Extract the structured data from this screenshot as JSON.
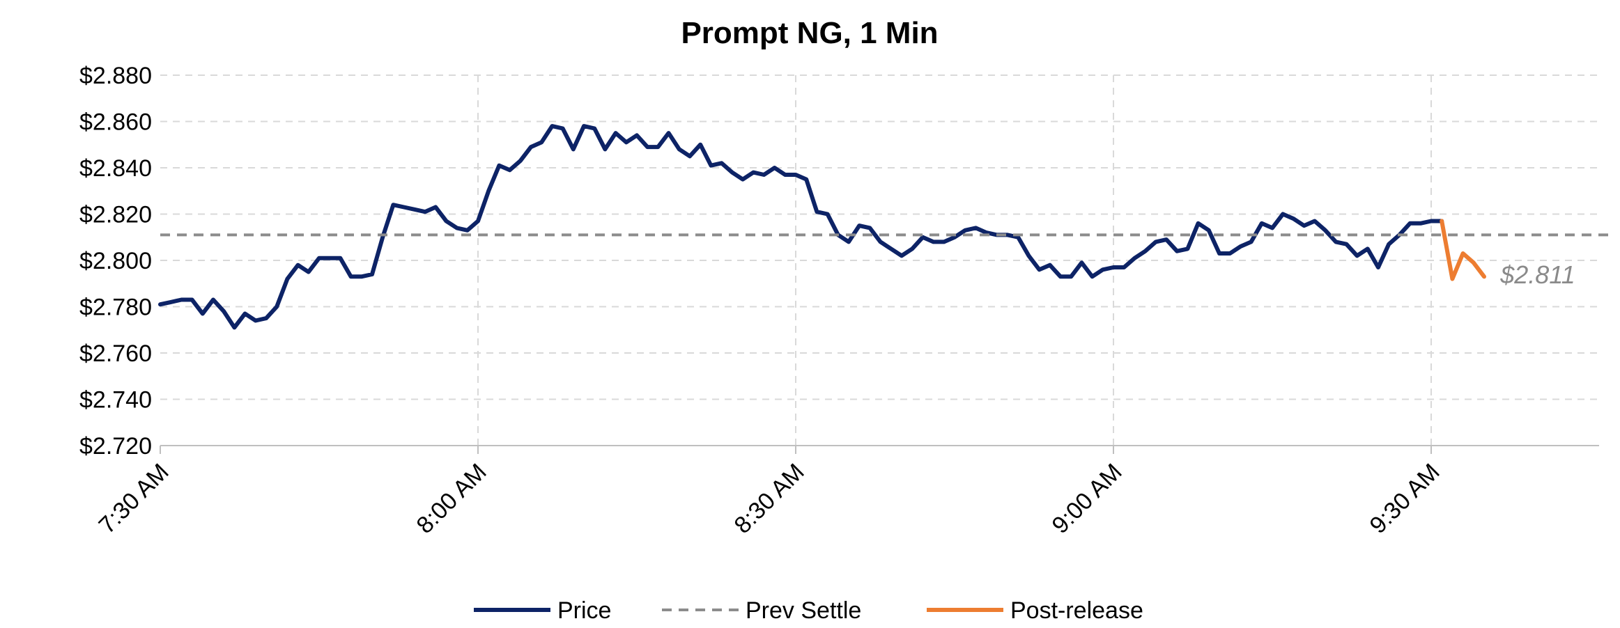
{
  "chart_data": {
    "type": "line",
    "title": "Prompt NG, 1 Min",
    "xlabel": "",
    "ylabel": "",
    "x_unit_minutes_from": "7:30 AM",
    "xlim": [
      0,
      125
    ],
    "ylim": [
      2.72,
      2.88
    ],
    "y_tick_step": 0.02,
    "y_tick_labels": [
      "$2.720",
      "$2.740",
      "$2.760",
      "$2.780",
      "$2.800",
      "$2.820",
      "$2.840",
      "$2.860",
      "$2.880"
    ],
    "x_ticks": [
      0,
      30,
      60,
      90,
      120
    ],
    "x_tick_labels": [
      "7:30 AM",
      "8:00 AM",
      "8:30 AM",
      "9:00 AM",
      "9:30 AM"
    ],
    "grid": true,
    "legend_position": "bottom",
    "series": [
      {
        "name": "Price",
        "color": "#0d2366",
        "x": [
          0,
          1,
          2,
          3,
          4,
          5,
          6,
          7,
          8,
          9,
          10,
          11,
          12,
          13,
          14,
          15,
          16,
          17,
          18,
          19,
          20,
          21,
          22,
          23,
          24,
          25,
          26,
          27,
          28,
          29,
          30,
          31,
          32,
          33,
          34,
          35,
          36,
          37,
          38,
          39,
          40,
          41,
          42,
          43,
          44,
          45,
          46,
          47,
          48,
          49,
          50,
          51,
          52,
          53,
          54,
          55,
          56,
          57,
          58,
          59,
          60,
          61,
          62,
          63,
          64,
          65,
          66,
          67,
          68,
          69,
          70,
          71,
          72,
          73,
          74,
          75,
          76,
          77,
          78,
          79,
          80,
          81,
          82,
          83,
          84,
          85,
          86,
          87,
          88,
          89,
          90,
          91,
          92,
          93,
          94,
          95,
          96,
          97,
          98,
          99,
          100,
          101,
          102,
          103,
          104,
          105,
          106,
          107,
          108,
          109,
          110,
          111,
          112,
          113,
          114,
          115,
          116,
          117,
          118,
          119,
          120,
          121
        ],
        "values": [
          2.781,
          2.782,
          2.783,
          2.783,
          2.777,
          2.783,
          2.778,
          2.771,
          2.777,
          2.774,
          2.775,
          2.78,
          2.792,
          2.798,
          2.795,
          2.801,
          2.801,
          2.801,
          2.793,
          2.793,
          2.794,
          2.81,
          2.824,
          2.823,
          2.822,
          2.821,
          2.823,
          2.817,
          2.814,
          2.813,
          2.817,
          2.83,
          2.841,
          2.839,
          2.843,
          2.849,
          2.851,
          2.858,
          2.857,
          2.848,
          2.858,
          2.857,
          2.848,
          2.855,
          2.851,
          2.854,
          2.849,
          2.849,
          2.855,
          2.848,
          2.845,
          2.85,
          2.841,
          2.842,
          2.838,
          2.835,
          2.838,
          2.837,
          2.84,
          2.837,
          2.837,
          2.835,
          2.821,
          2.82,
          2.811,
          2.808,
          2.815,
          2.814,
          2.808,
          2.805,
          2.802,
          2.805,
          2.81,
          2.808,
          2.808,
          2.81,
          2.813,
          2.814,
          2.812,
          2.811,
          2.811,
          2.81,
          2.802,
          2.796,
          2.798,
          2.793,
          2.793,
          2.799,
          2.793,
          2.796,
          2.797,
          2.797,
          2.801,
          2.804,
          2.808,
          2.809,
          2.804,
          2.805,
          2.816,
          2.813,
          2.803,
          2.803,
          2.806,
          2.808,
          2.816,
          2.814,
          2.82,
          2.818,
          2.815,
          2.817,
          2.813,
          2.808,
          2.807,
          2.802,
          2.805,
          2.797,
          2.807,
          2.811,
          2.816,
          2.816,
          2.817,
          2.817
        ]
      },
      {
        "name": "Prev Settle",
        "color": "#8c8c8c",
        "style": "dashed",
        "x": [
          0,
          137
        ],
        "values": [
          2.811,
          2.811
        ]
      },
      {
        "name": "Post-release",
        "color": "#ed7d31",
        "x": [
          121,
          122,
          123,
          124,
          125
        ],
        "values": [
          2.817,
          2.792,
          2.803,
          2.799,
          2.793
        ]
      }
    ],
    "annotation": {
      "text": "$2.811",
      "x": 126,
      "y": 2.794
    }
  }
}
